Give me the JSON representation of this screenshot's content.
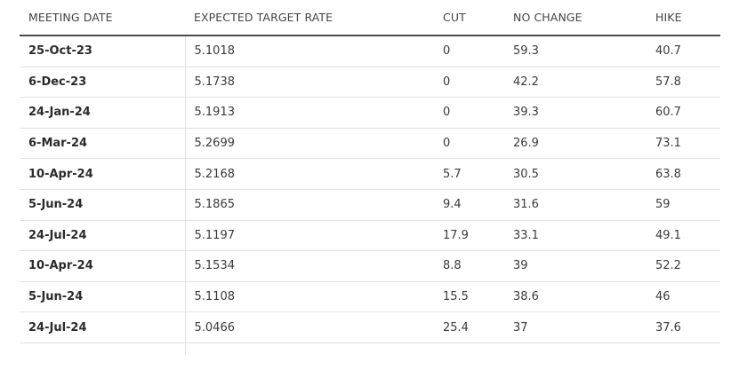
{
  "table": {
    "headers": [
      "MEETING DATE",
      "EXPECTED TARGET RATE",
      "CUT",
      "NO CHANGE",
      "HIKE"
    ],
    "rows": [
      [
        "25-Oct-23",
        "5.1018",
        "0",
        "59.3",
        "40.7"
      ],
      [
        "6-Dec-23",
        "5.1738",
        "0",
        "42.2",
        "57.8"
      ],
      [
        "24-Jan-24",
        "5.1913",
        "0",
        "39.3",
        "60.7"
      ],
      [
        "6-Mar-24",
        "5.2699",
        "0",
        "26.9",
        "73.1"
      ],
      [
        "10-Apr-24",
        "5.2168",
        "5.7",
        "30.5",
        "63.8"
      ],
      [
        "5-Jun-24",
        "5.1865",
        "9.4",
        "31.6",
        "59"
      ],
      [
        "24-Jul-24",
        "5.1197",
        "17.9",
        "33.1",
        "49.1"
      ],
      [
        "10-Apr-24",
        "5.1534",
        "8.8",
        "39",
        "52.2"
      ],
      [
        "5-Jun-24",
        "5.1108",
        "15.5",
        "38.6",
        "46"
      ],
      [
        "24-Jul-24",
        "5.0466",
        "25.4",
        "37",
        "37.6"
      ]
    ]
  }
}
